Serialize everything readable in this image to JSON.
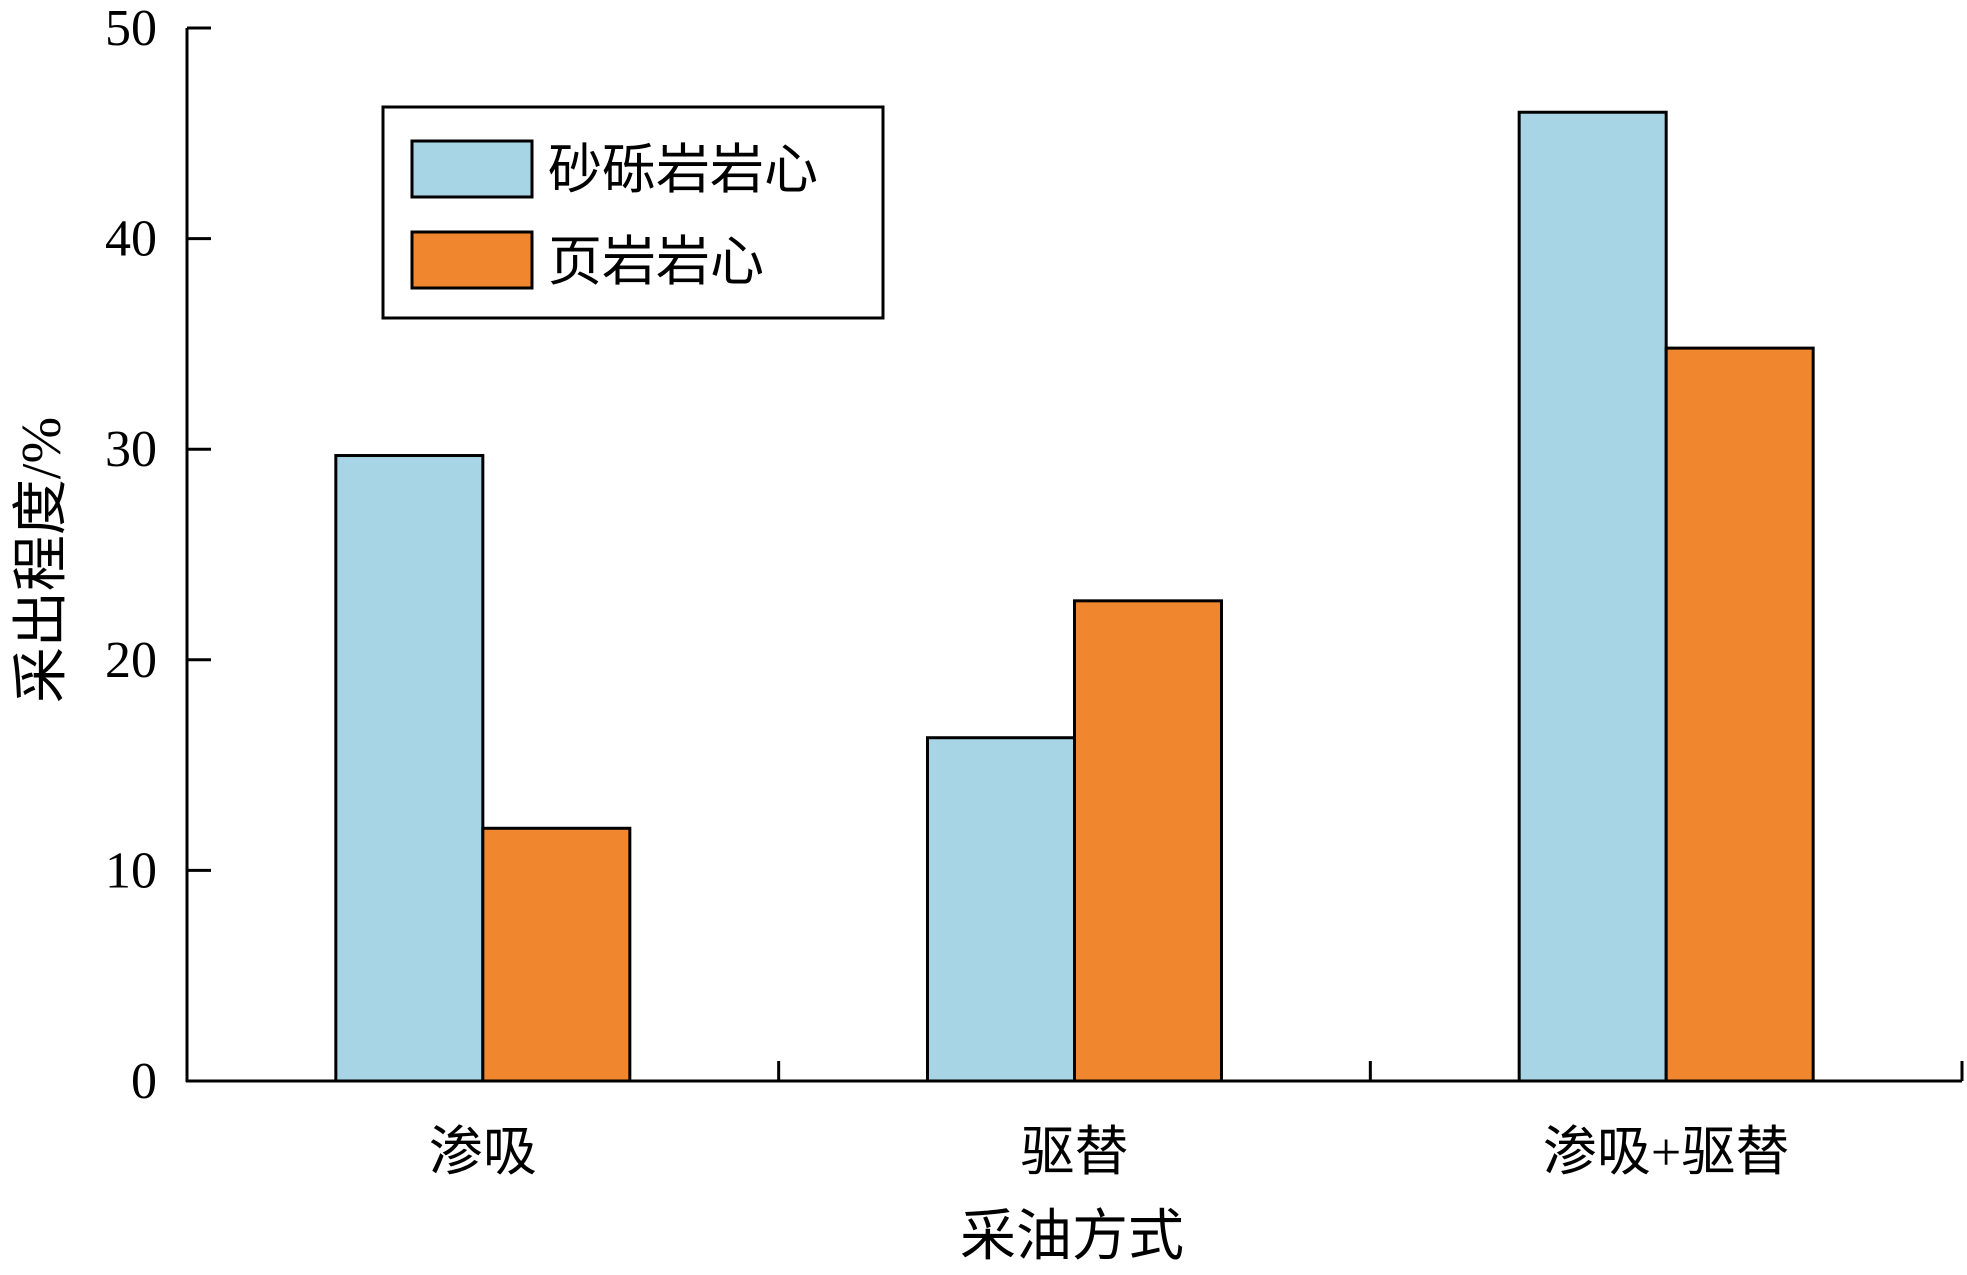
{
  "chart_data": {
    "type": "bar",
    "title": "",
    "xlabel": "采油方式",
    "ylabel": "采出程度/%",
    "categories": [
      "渗吸",
      "驱替",
      "渗吸+驱替"
    ],
    "series": [
      {
        "name": "砂砾岩岩心",
        "values": [
          29.7,
          16.3,
          46.0
        ],
        "color": "#a7d5e6"
      },
      {
        "name": "页岩岩心",
        "values": [
          12.0,
          22.8,
          34.8
        ],
        "color": "#f0872e"
      }
    ],
    "ylim": [
      0,
      50
    ],
    "yticks": [
      0,
      10,
      20,
      30,
      40,
      50
    ],
    "grid": false,
    "legend_position": "top-left"
  }
}
